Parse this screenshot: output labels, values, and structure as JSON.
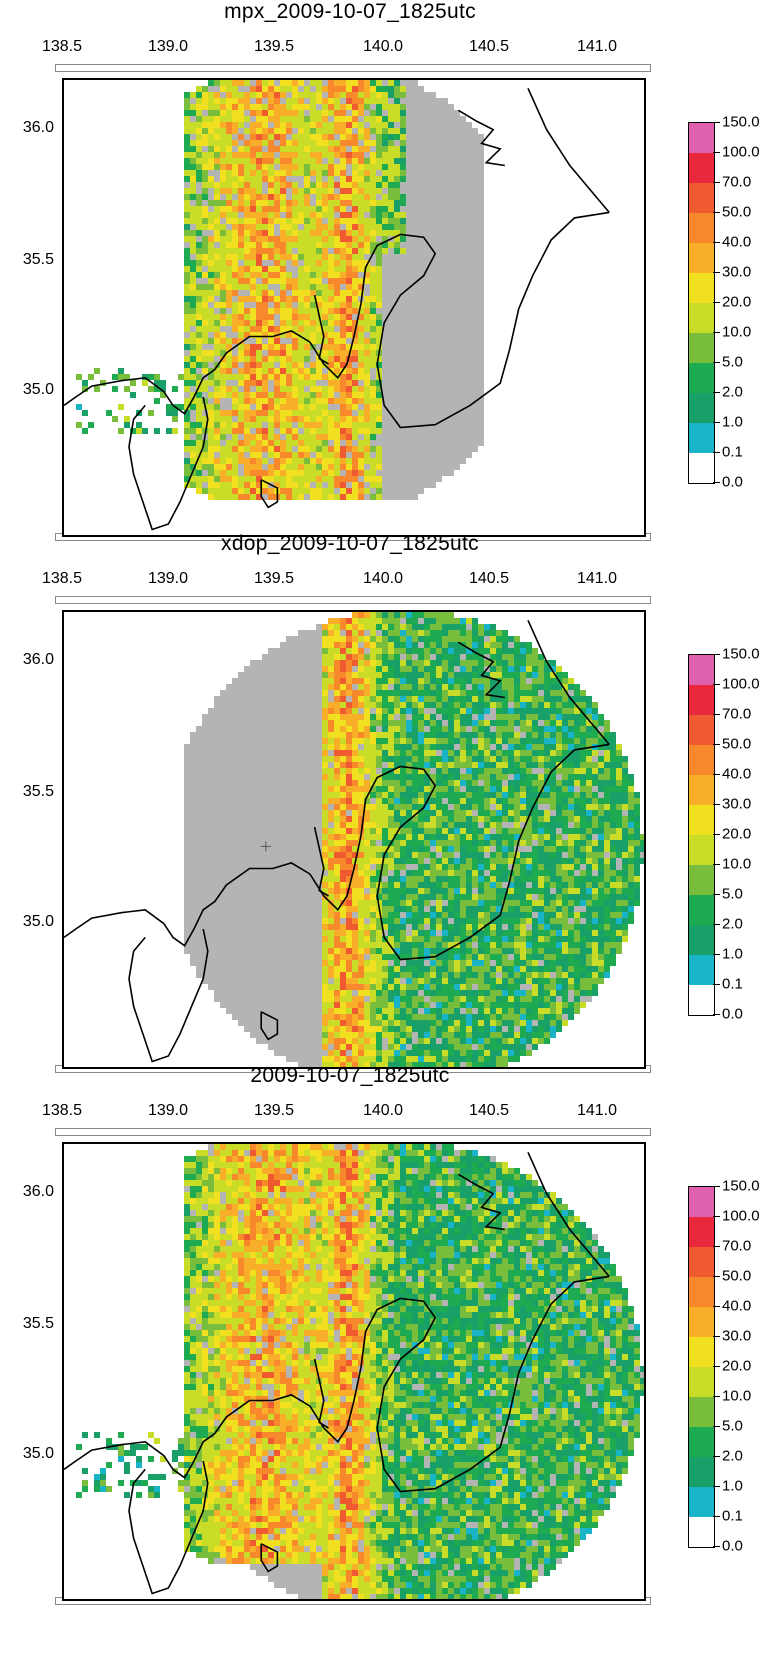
{
  "panels": [
    {
      "title": "mpx_2009-10-07_1825utc",
      "variant": "mpx"
    },
    {
      "title": "xdop_2009-10-07_1825utc",
      "variant": "xdop"
    },
    {
      "title": "2009-10-07_1825utc",
      "variant": "combined"
    }
  ],
  "x_ticks": [
    "138.5",
    "139.0",
    "139.5",
    "140.0",
    "140.5",
    "141.0"
  ],
  "y_ticks": [
    "36.0",
    "35.5",
    "35.0"
  ],
  "colorbar": {
    "labels": [
      "150.0",
      "100.0",
      "70.0",
      "50.0",
      "40.0",
      "30.0",
      "20.0",
      "10.0",
      "5.0",
      "2.0",
      "1.0",
      "0.1",
      "0.0"
    ],
    "colors": [
      "#e060b0",
      "#e8283c",
      "#ef5a30",
      "#f7882c",
      "#f8ae28",
      "#f0e020",
      "#c8dc28",
      "#78be3c",
      "#1eaa50",
      "#18a068",
      "#1ab4c8",
      "#ffffff"
    ]
  },
  "no_data_color": "#b4b4b4"
}
